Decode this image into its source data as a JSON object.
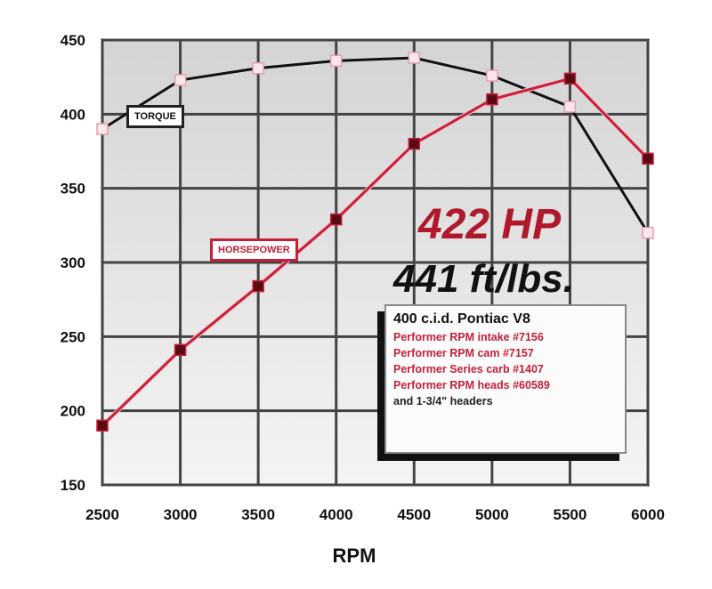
{
  "chart_data": {
    "type": "line",
    "xlabel": "RPM",
    "ylabel": "",
    "x": [
      2500,
      3000,
      3500,
      4000,
      4500,
      5000,
      5500,
      6000
    ],
    "xlim": [
      2500,
      6000
    ],
    "ylim": [
      150,
      450
    ],
    "xticks": [
      "2500",
      "3000",
      "3500",
      "4000",
      "4500",
      "5000",
      "5500",
      "6000"
    ],
    "yticks": [
      "450",
      "400",
      "350",
      "300",
      "250",
      "200",
      "150"
    ],
    "grid": true,
    "series": [
      {
        "name": "TORQUE",
        "color": "#111111",
        "marker": "open-square",
        "values": [
          390,
          423,
          431,
          436,
          438,
          426,
          405,
          320
        ]
      },
      {
        "name": "HORSEPOWER",
        "color": "#c4203a",
        "marker": "filled-square",
        "values": [
          190,
          241,
          284,
          329,
          380,
          410,
          424,
          370
        ]
      }
    ],
    "annotations": {
      "hp_peak": "422 HP",
      "torque_peak": "441 ft/lbs."
    },
    "spec_box": {
      "title": "400 c.i.d. Pontiac V8",
      "lines": [
        "Performer RPM intake #7156",
        "Performer RPM cam #7157",
        "Performer Series carb #1407",
        "Performer RPM heads #60589",
        "and 1-3/4\" headers"
      ]
    }
  }
}
